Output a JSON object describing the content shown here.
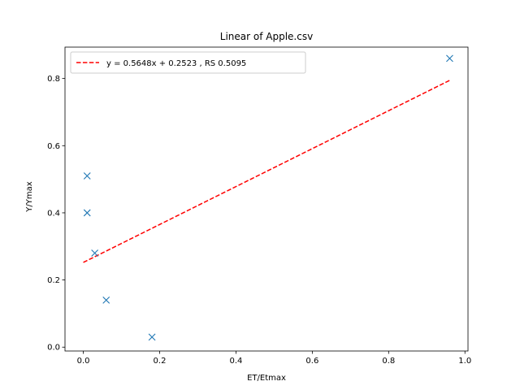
{
  "chart_data": {
    "type": "scatter",
    "title": "Linear of Apple.csv",
    "xlabel": "ET/Etmax",
    "ylabel": "Y/Ymax",
    "xlim": [
      -0.048,
      1.008
    ],
    "ylim": [
      -0.0115,
      0.8935
    ],
    "xticks": [
      0.0,
      0.2,
      0.4,
      0.6,
      0.8,
      1.0
    ],
    "yticks": [
      0.0,
      0.2,
      0.4,
      0.6,
      0.8
    ],
    "grid": false,
    "legend_position": "upper-left",
    "points": {
      "marker": "x",
      "color": "#1f77b4",
      "x": [
        0.01,
        0.01,
        0.03,
        0.06,
        0.18,
        0.96
      ],
      "y": [
        0.51,
        0.4,
        0.28,
        0.14,
        0.03,
        0.86
      ]
    },
    "fit_line": {
      "label": "y = 0.5648x + 0.2523 , RS 0.5095",
      "slope": 0.5648,
      "intercept": 0.2523,
      "x_range": [
        0.0,
        0.96
      ],
      "color": "#ff0000",
      "style": "dashed"
    }
  }
}
